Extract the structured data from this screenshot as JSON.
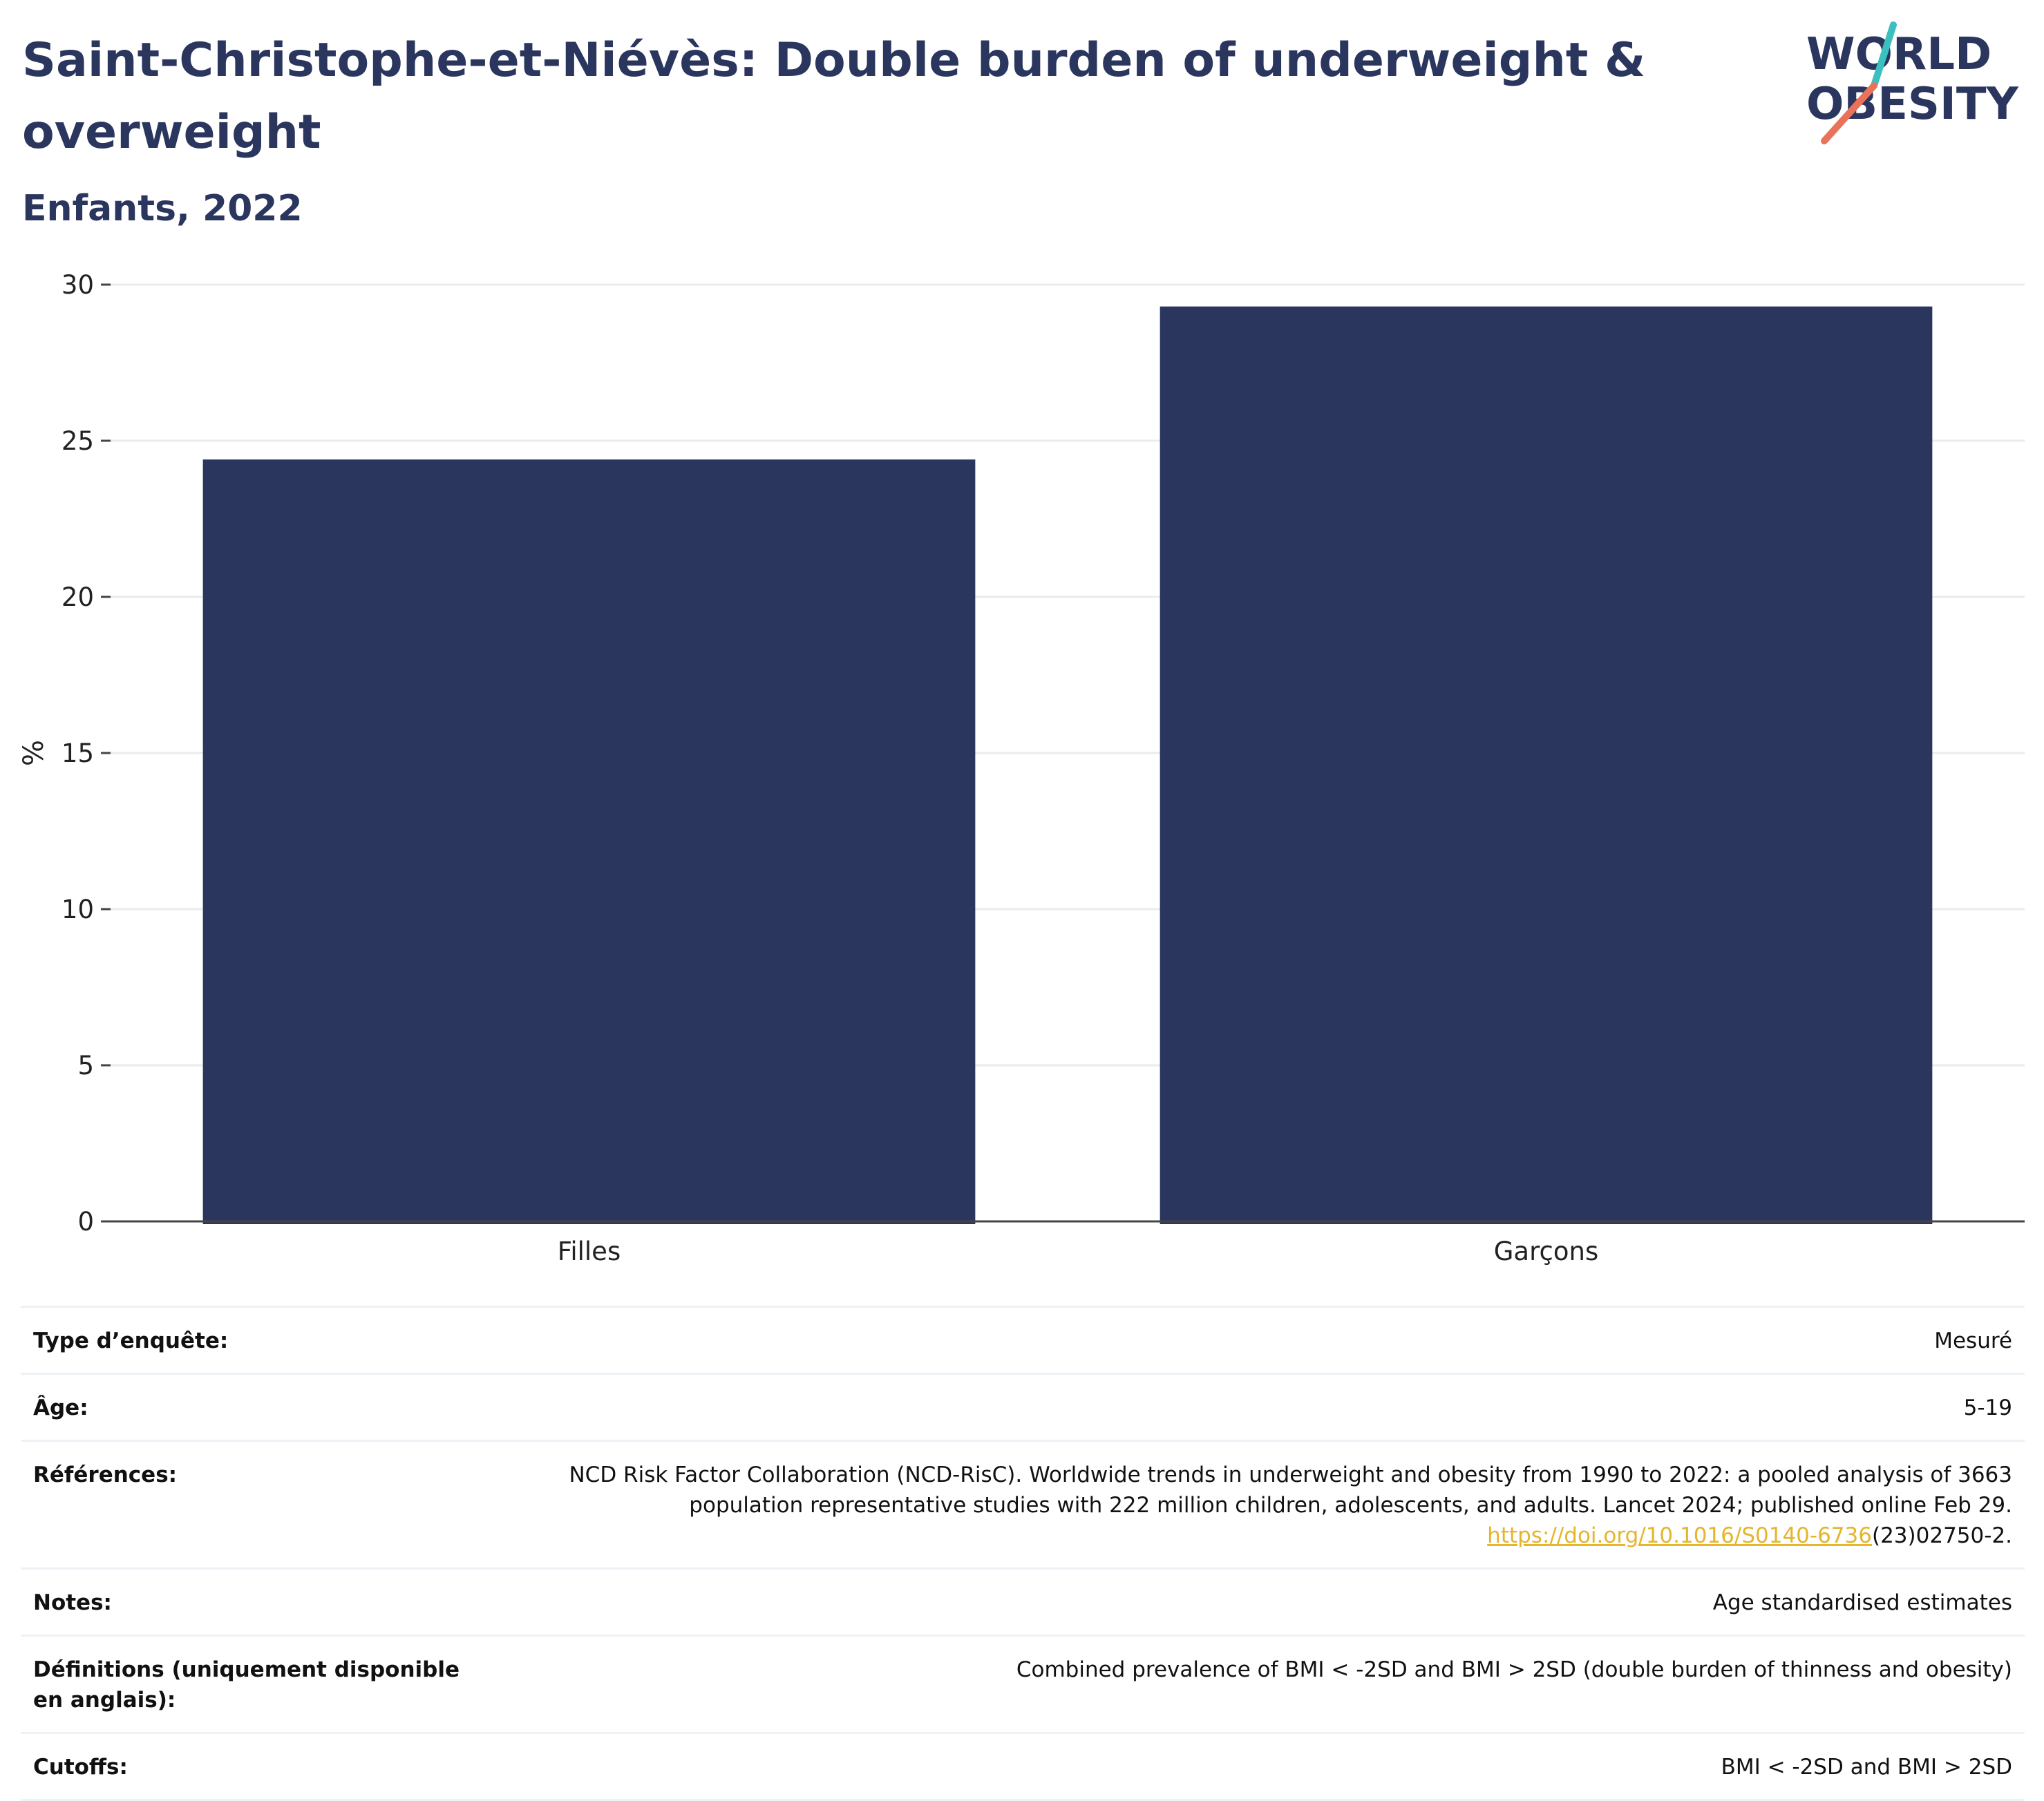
{
  "header": {
    "title": "Saint-Christophe-et-Niévès: Double burden of underweight & overweight",
    "subtitle": "Enfants, 2022"
  },
  "logo": {
    "line1": "WORLD",
    "line2": "OBESITY",
    "accent_teal": "#3bbfbf",
    "accent_coral": "#e8735a"
  },
  "chart_data": {
    "type": "bar",
    "categories": [
      "Filles",
      "Garçons"
    ],
    "values": [
      24.4,
      29.3
    ],
    "ylabel": "%",
    "ylim": [
      0,
      30
    ],
    "yticks": [
      0,
      5,
      10,
      15,
      20,
      25,
      30
    ],
    "grid": true,
    "bar_color": "#2b365f"
  },
  "info": {
    "survey_label": "Type d’enquête:",
    "survey_value": "Mesuré",
    "age_label": "Âge:",
    "age_value": "5-19",
    "refs_label": "Références:",
    "refs_text": "NCD Risk Factor Collaboration (NCD-RisC). Worldwide trends in underweight and obesity from 1990 to 2022: a pooled analysis of 3663 population representative studies with 222 million children, adolescents, and adults. Lancet 2024; published online Feb 29.",
    "refs_link": "https://doi.org/10.1016/S0140-6736",
    "refs_tail": "(23)02750-2.",
    "notes_label": "Notes:",
    "notes_value": "Age standardised estimates",
    "defs_label": "Définitions (uniquement disponible en anglais):",
    "defs_value": "Combined prevalence of BMI < -2SD and BMI > 2SD (double burden of thinness and obesity)",
    "cutoffs_label": "Cutoffs:",
    "cutoffs_value": "BMI < -2SD and BMI > 2SD"
  }
}
